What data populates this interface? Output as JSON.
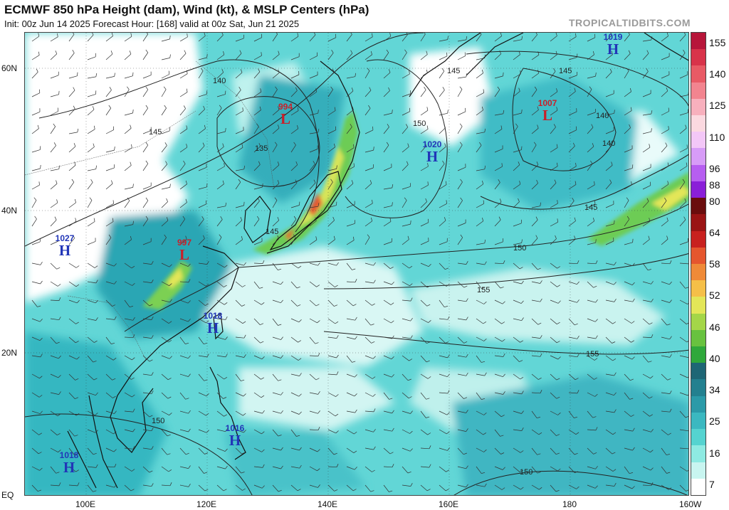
{
  "header": {
    "title": "ECMWF 850 hPa Height (dam), Wind (kt), & MSLP Centers (hPa)",
    "subtitle": "Init: 00z Jun 14 2025   Forecast Hour: [168]   valid at 00z Sat, Jun 21 2025",
    "brand": "TROPICALTIDBITS.COM"
  },
  "axes": {
    "lat_labels": [
      "60N",
      "40N",
      "20N",
      "EQ"
    ],
    "lon_labels": [
      "100E",
      "120E",
      "140E",
      "160E",
      "180",
      "160W"
    ]
  },
  "colorbar": {
    "labels": [
      "155",
      "140",
      "125",
      "110",
      "96",
      "88",
      "80",
      "64",
      "58",
      "52",
      "46",
      "40",
      "34",
      "25",
      "16",
      "7"
    ],
    "colors": [
      "#ffffff",
      "#c8f5f0",
      "#8eeae2",
      "#55d3d0",
      "#3bb8c0",
      "#2b9aa8",
      "#23808f",
      "#1e6675",
      "#2fa83b",
      "#68c23f",
      "#a4d648",
      "#e3e658",
      "#f5bf48",
      "#ef8a38",
      "#e5562e",
      "#c8211f",
      "#9a1414",
      "#6a0d0d",
      "#8a1fd8",
      "#b65ef0",
      "#d79cf7",
      "#f3c7f7",
      "#fbd9e0",
      "#f7b0bd",
      "#f2848f",
      "#e85a65",
      "#d8334a",
      "#b7163a"
    ]
  },
  "pressure_centers": [
    {
      "type": "H",
      "value": "1019",
      "color": "#2236b8"
    },
    {
      "type": "L",
      "value": "994",
      "color": "#c8202a"
    },
    {
      "type": "L",
      "value": "1007",
      "color": "#c8202a"
    },
    {
      "type": "H",
      "value": "1020",
      "color": "#2236b8"
    },
    {
      "type": "H",
      "value": "1027",
      "color": "#2236b8"
    },
    {
      "type": "L",
      "value": "997",
      "color": "#c8202a"
    },
    {
      "type": "H",
      "value": "1018",
      "color": "#2236b8"
    },
    {
      "type": "H",
      "value": "1016",
      "color": "#2236b8"
    },
    {
      "type": "H",
      "value": "1018",
      "color": "#2236b8"
    }
  ],
  "contour_labels": [
    "145",
    "140",
    "145",
    "135",
    "150",
    "145",
    "140",
    "140",
    "145",
    "150",
    "145",
    "155",
    "150",
    "155",
    "150"
  ]
}
